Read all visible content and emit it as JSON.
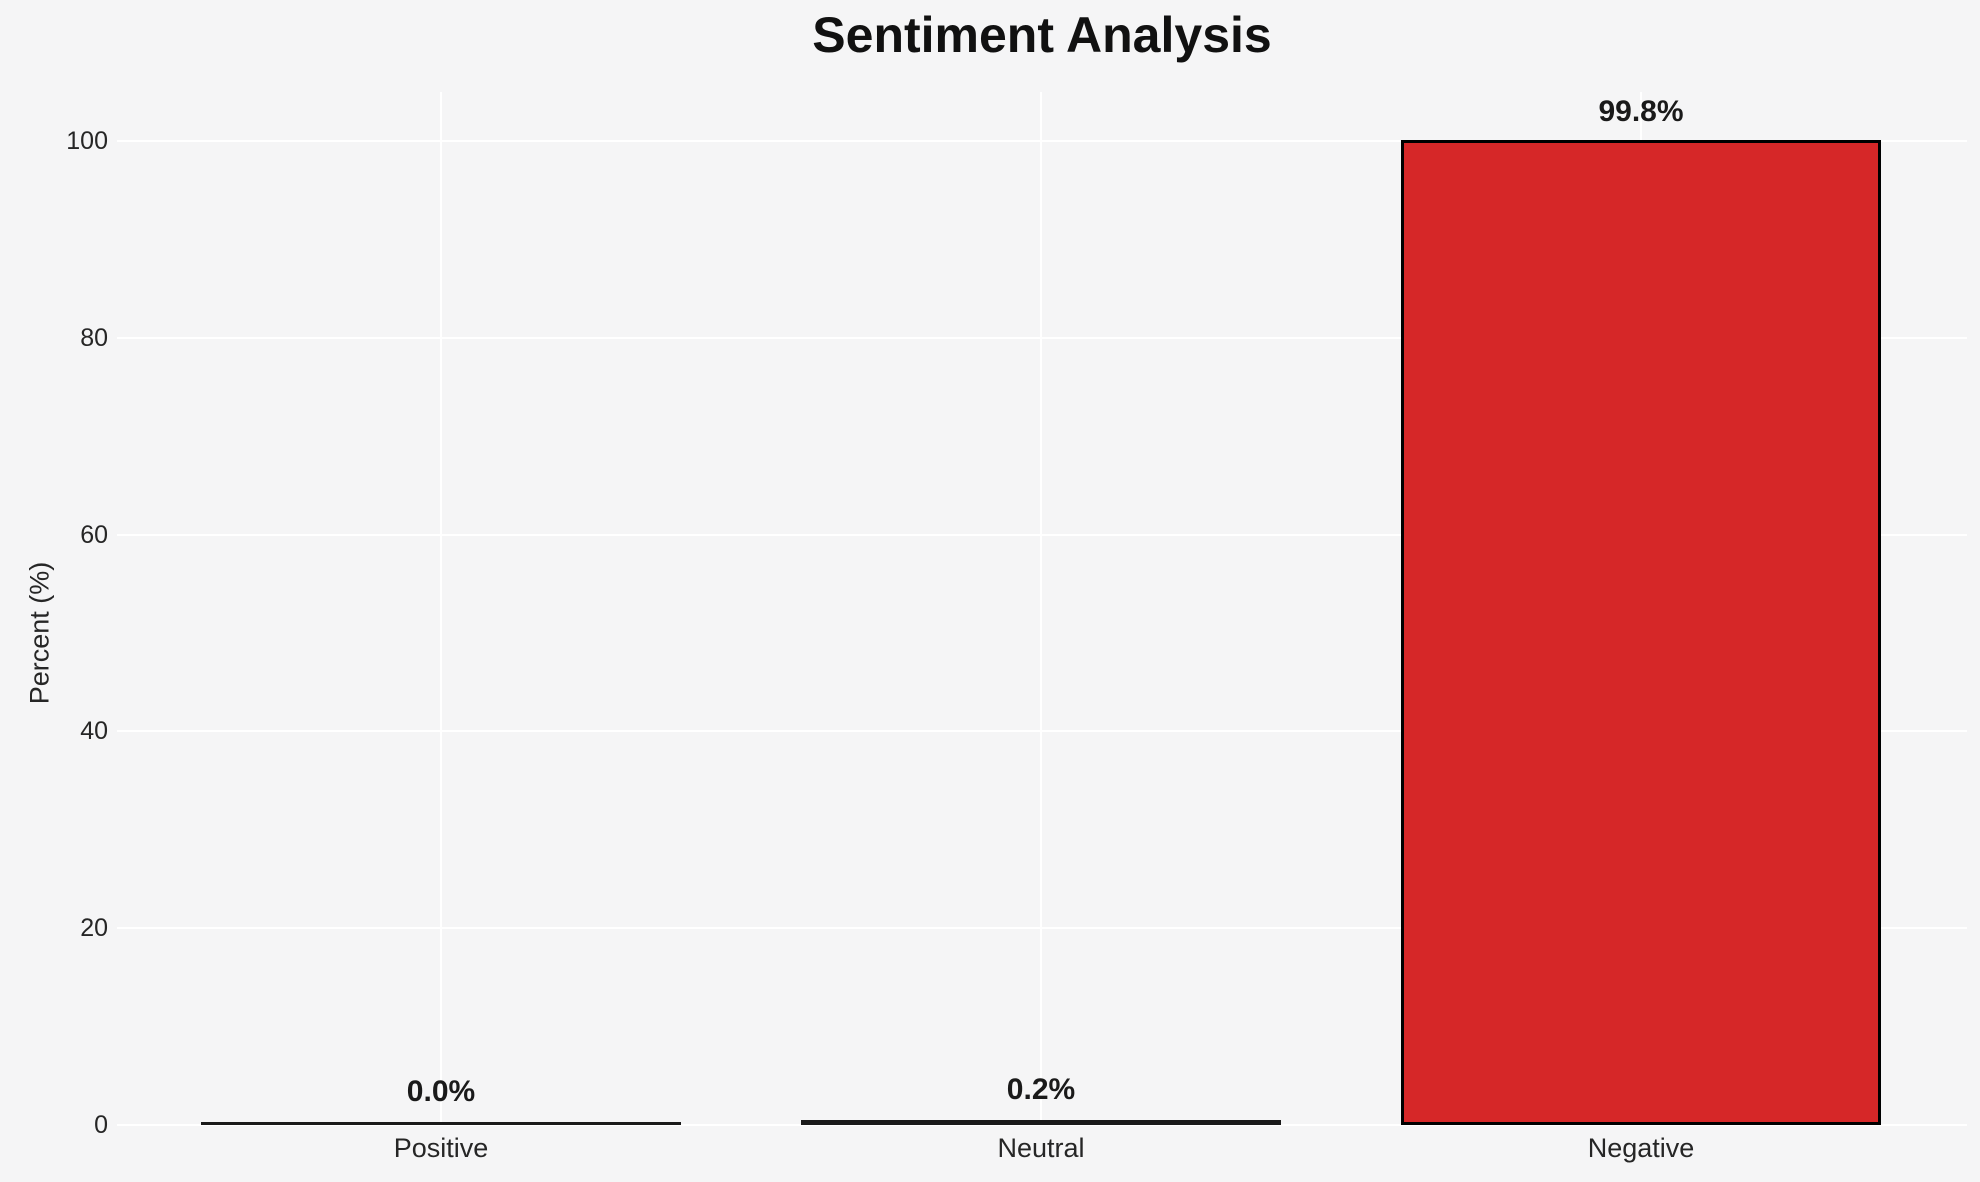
{
  "chart_data": {
    "type": "bar",
    "title": "Sentiment Analysis",
    "xlabel": "",
    "ylabel": "Percent (%)",
    "categories": [
      "Positive",
      "Neutral",
      "Negative"
    ],
    "values": [
      0.0,
      0.2,
      99.8
    ],
    "value_labels": [
      "0.0%",
      "0.2%",
      "99.8%"
    ],
    "yticks": [
      0,
      20,
      40,
      60,
      80,
      100
    ],
    "ylim": [
      0,
      105
    ],
    "grid": "on",
    "legend": "none",
    "bar_color": "#d62728",
    "bar_edge_color": "#000000",
    "background_color": "#f5f5f6",
    "grid_color": "#ffffff",
    "text_color": "#262626"
  }
}
